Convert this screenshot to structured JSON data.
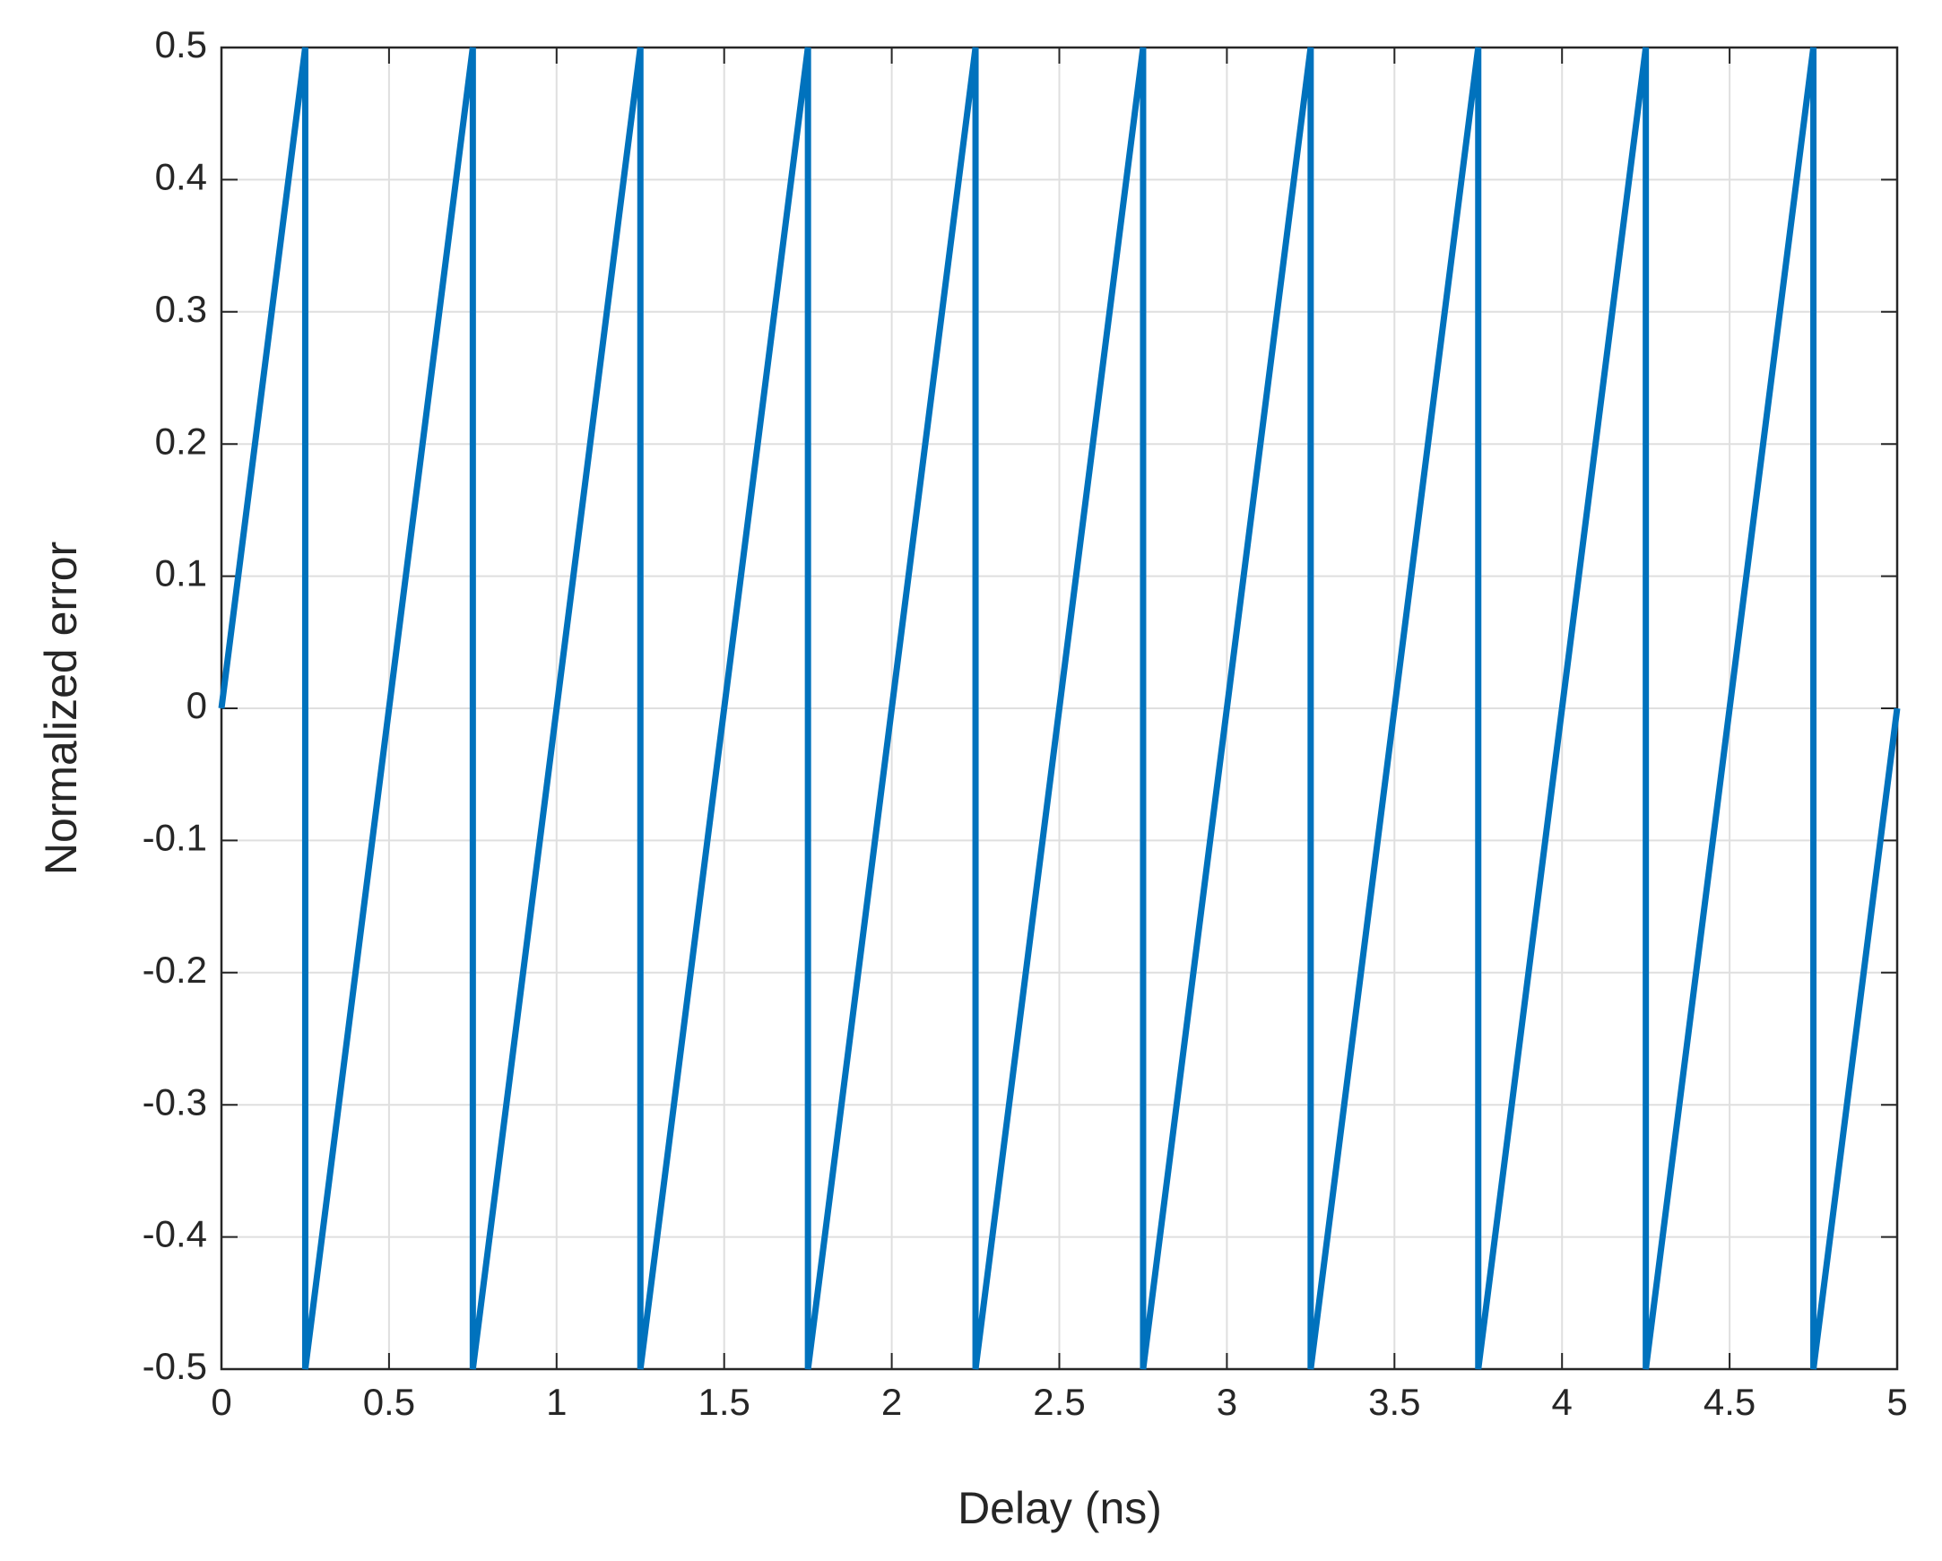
{
  "chart_data": {
    "type": "line",
    "xlabel": "Delay (ns)",
    "ylabel": "Normalized error",
    "series": [
      {
        "color": "#0072bd",
        "x": [
          0,
          0.25,
          0.25,
          0.75,
          0.75,
          1.25,
          1.25,
          1.75,
          1.75,
          2.25,
          2.25,
          2.75,
          2.75,
          3.25,
          3.25,
          3.75,
          3.75,
          4.25,
          4.25,
          4.75,
          4.75,
          5
        ],
        "values": [
          0,
          0.5,
          -0.5,
          0.5,
          -0.5,
          0.5,
          -0.5,
          0.5,
          -0.5,
          0.5,
          -0.5,
          0.5,
          -0.5,
          0.5,
          -0.5,
          0.5,
          -0.5,
          0.5,
          -0.5,
          0.5,
          -0.5,
          0
        ]
      }
    ],
    "xlim": [
      0,
      5
    ],
    "xticks": [
      0,
      0.5,
      1,
      1.5,
      2,
      2.5,
      3,
      3.5,
      4,
      4.5,
      5
    ],
    "ylim": [
      -0.5,
      0.5
    ],
    "yticks": [
      -0.5,
      -0.4,
      -0.3,
      -0.2,
      -0.1,
      0,
      0.1,
      0.2,
      0.3,
      0.4,
      0.5
    ],
    "grid": true
  }
}
